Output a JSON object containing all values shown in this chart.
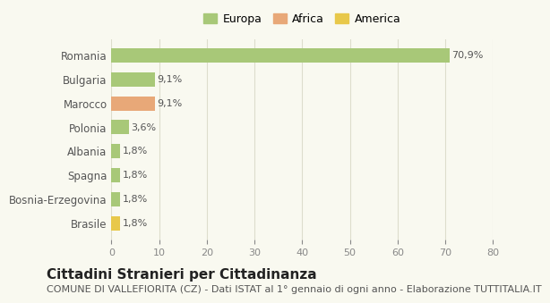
{
  "categories": [
    "Brasile",
    "Bosnia-Erzegovina",
    "Spagna",
    "Albania",
    "Polonia",
    "Marocco",
    "Bulgaria",
    "Romania"
  ],
  "values": [
    1.8,
    1.8,
    1.8,
    1.8,
    3.6,
    9.1,
    9.1,
    70.9
  ],
  "labels": [
    "1,8%",
    "1,8%",
    "1,8%",
    "1,8%",
    "3,6%",
    "9,1%",
    "9,1%",
    "70,9%"
  ],
  "colors": [
    "#e8c84a",
    "#a8c878",
    "#a8c878",
    "#a8c878",
    "#a8c878",
    "#e8a878",
    "#a8c878",
    "#a8c878"
  ],
  "continent": [
    "America",
    "Europa",
    "Europa",
    "Europa",
    "Europa",
    "Africa",
    "Europa",
    "Europa"
  ],
  "legend": [
    {
      "label": "Europa",
      "color": "#a8c878"
    },
    {
      "label": "Africa",
      "color": "#e8a878"
    },
    {
      "label": "America",
      "color": "#e8c84a"
    }
  ],
  "xlim": [
    0,
    80
  ],
  "xticks": [
    0,
    10,
    20,
    30,
    40,
    50,
    60,
    70,
    80
  ],
  "title": "Cittadini Stranieri per Cittadinanza",
  "subtitle": "COMUNE DI VALLEFIORITA (CZ) - Dati ISTAT al 1° gennaio di ogni anno - Elaborazione TUTTITALIA.IT",
  "background_color": "#f9f9f0",
  "grid_color": "#ddddcc",
  "bar_height": 0.6,
  "title_fontsize": 11,
  "subtitle_fontsize": 8
}
